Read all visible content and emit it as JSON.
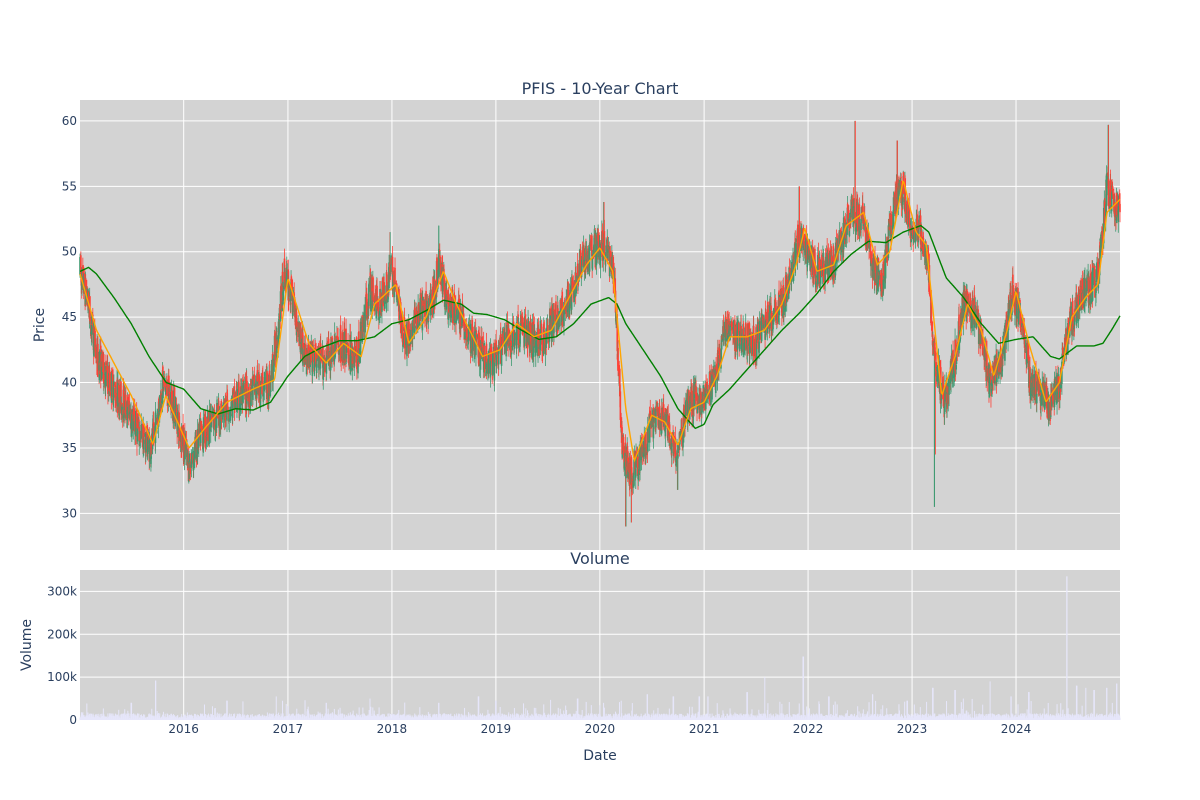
{
  "chart_data": {
    "type": "candlestick",
    "title": "PFIS - 10-Year Chart",
    "colors": {
      "plot_bg": "#d3d3d3",
      "grid": "#ffffff",
      "up": "#3d9970",
      "down": "#ff4136",
      "ma_short": "#ffa500",
      "ma_long": "#008000",
      "volume": "#e6e6fa"
    },
    "price_panel": {
      "ylabel": "Price",
      "ylim": [
        27.2,
        61.6
      ],
      "yticks": [
        30,
        35,
        40,
        45,
        50,
        55,
        60
      ],
      "xlim": [
        "2015-01-02",
        "2024-12-31"
      ],
      "xticks": [
        "2016",
        "2017",
        "2018",
        "2019",
        "2020",
        "2021",
        "2022",
        "2023",
        "2024"
      ],
      "anchors": [
        [
          "2015-01-02",
          48.5
        ],
        [
          "2015-02-01",
          46
        ],
        [
          "2015-03-01",
          42
        ],
        [
          "2015-04-15",
          40
        ],
        [
          "2015-06-15",
          38
        ],
        [
          "2015-08-01",
          36
        ],
        [
          "2015-09-10",
          35
        ],
        [
          "2015-10-20",
          40
        ],
        [
          "2015-12-01",
          38
        ],
        [
          "2016-01-20",
          33.5
        ],
        [
          "2016-03-01",
          36
        ],
        [
          "2016-05-01",
          37.5
        ],
        [
          "2016-07-01",
          38.5
        ],
        [
          "2016-09-01",
          39.5
        ],
        [
          "2016-11-01",
          40
        ],
        [
          "2016-11-25",
          44
        ],
        [
          "2016-12-20",
          48.5
        ],
        [
          "2017-01-20",
          46
        ],
        [
          "2017-03-01",
          42
        ],
        [
          "2017-05-01",
          41.5
        ],
        [
          "2017-07-01",
          43
        ],
        [
          "2017-09-01",
          42
        ],
        [
          "2017-10-15",
          47
        ],
        [
          "2017-11-15",
          46
        ],
        [
          "2018-01-01",
          48.5
        ],
        [
          "2018-02-20",
          43
        ],
        [
          "2018-04-01",
          45
        ],
        [
          "2018-05-20",
          46
        ],
        [
          "2018-06-15",
          49
        ],
        [
          "2018-07-15",
          46
        ],
        [
          "2018-09-01",
          45
        ],
        [
          "2018-10-15",
          43
        ],
        [
          "2018-12-20",
          41.5
        ],
        [
          "2019-02-01",
          43
        ],
        [
          "2019-04-01",
          44
        ],
        [
          "2019-06-01",
          43
        ],
        [
          "2019-07-15",
          44.5
        ],
        [
          "2019-09-15",
          46
        ],
        [
          "2019-10-20",
          49
        ],
        [
          "2019-12-15",
          50
        ],
        [
          "2020-01-15",
          50.5
        ],
        [
          "2020-02-20",
          48
        ],
        [
          "2020-03-20",
          35
        ],
        [
          "2020-04-20",
          33
        ],
        [
          "2020-05-20",
          34
        ],
        [
          "2020-07-01",
          37
        ],
        [
          "2020-08-15",
          37.5
        ],
        [
          "2020-09-25",
          34
        ],
        [
          "2020-10-30",
          38
        ],
        [
          "2020-12-01",
          39
        ],
        [
          "2021-01-01",
          38.5
        ],
        [
          "2021-02-15",
          41
        ],
        [
          "2021-03-15",
          44
        ],
        [
          "2021-05-01",
          43.5
        ],
        [
          "2021-07-01",
          43
        ],
        [
          "2021-08-15",
          45
        ],
        [
          "2021-10-01",
          46
        ],
        [
          "2021-11-01",
          48.5
        ],
        [
          "2021-12-01",
          51
        ],
        [
          "2022-01-01",
          50
        ],
        [
          "2022-02-01",
          48.5
        ],
        [
          "2022-04-01",
          49
        ],
        [
          "2022-05-01",
          51
        ],
        [
          "2022-06-01",
          53
        ],
        [
          "2022-07-15",
          52.5
        ],
        [
          "2022-08-15",
          49
        ],
        [
          "2022-09-20",
          48
        ],
        [
          "2022-11-01",
          54
        ],
        [
          "2022-12-01",
          55
        ],
        [
          "2023-01-01",
          51.5
        ],
        [
          "2023-02-01",
          51.5
        ],
        [
          "2023-02-25",
          49
        ],
        [
          "2023-03-20",
          42
        ],
        [
          "2023-04-25",
          38.5
        ],
        [
          "2023-06-01",
          42
        ],
        [
          "2023-07-01",
          46
        ],
        [
          "2023-08-15",
          45
        ],
        [
          "2023-10-01",
          40
        ],
        [
          "2023-11-15",
          42
        ],
        [
          "2023-12-20",
          47
        ],
        [
          "2024-01-20",
          45
        ],
        [
          "2024-02-20",
          40
        ],
        [
          "2024-04-01",
          39
        ],
        [
          "2024-05-01",
          38
        ],
        [
          "2024-06-01",
          40
        ],
        [
          "2024-07-01",
          44
        ],
        [
          "2024-08-01",
          46
        ],
        [
          "2024-09-01",
          47
        ],
        [
          "2024-10-15",
          48
        ],
        [
          "2024-11-15",
          55
        ],
        [
          "2024-12-31",
          53
        ]
      ],
      "ma_short_anchors": [
        [
          "2015-01-02",
          48.3
        ],
        [
          "2015-03-01",
          44
        ],
        [
          "2015-05-01",
          41.5
        ],
        [
          "2015-07-01",
          39
        ],
        [
          "2015-09-15",
          35.3
        ],
        [
          "2015-10-30",
          39
        ],
        [
          "2016-01-20",
          35
        ],
        [
          "2016-03-15",
          36.5
        ],
        [
          "2016-06-01",
          38.5
        ],
        [
          "2016-09-01",
          39.5
        ],
        [
          "2016-11-15",
          40.2
        ],
        [
          "2017-01-01",
          48
        ],
        [
          "2017-03-15",
          43
        ],
        [
          "2017-05-15",
          41.5
        ],
        [
          "2017-07-15",
          43
        ],
        [
          "2017-09-15",
          42
        ],
        [
          "2017-11-01",
          46
        ],
        [
          "2018-01-15",
          47.5
        ],
        [
          "2018-03-01",
          43
        ],
        [
          "2018-05-01",
          45
        ],
        [
          "2018-07-01",
          48.5
        ],
        [
          "2018-08-15",
          46
        ],
        [
          "2018-10-01",
          44
        ],
        [
          "2018-11-15",
          42
        ],
        [
          "2019-01-15",
          42.5
        ],
        [
          "2019-03-15",
          44.5
        ],
        [
          "2019-05-15",
          43.5
        ],
        [
          "2019-07-15",
          44
        ],
        [
          "2019-09-15",
          46.5
        ],
        [
          "2019-11-15",
          49
        ],
        [
          "2020-01-01",
          50.3
        ],
        [
          "2020-02-15",
          48.5
        ],
        [
          "2020-04-01",
          38
        ],
        [
          "2020-05-01",
          34
        ],
        [
          "2020-07-01",
          37.5
        ],
        [
          "2020-08-15",
          37
        ],
        [
          "2020-10-01",
          35.2
        ],
        [
          "2020-11-15",
          38
        ],
        [
          "2021-01-01",
          38.5
        ],
        [
          "2021-02-15",
          40.5
        ],
        [
          "2021-04-01",
          43.5
        ],
        [
          "2021-06-01",
          43.5
        ],
        [
          "2021-08-01",
          44
        ],
        [
          "2021-10-01",
          46
        ],
        [
          "2021-11-20",
          49
        ],
        [
          "2021-12-20",
          51.8
        ],
        [
          "2022-02-01",
          48.5
        ],
        [
          "2022-04-01",
          49
        ],
        [
          "2022-05-15",
          52
        ],
        [
          "2022-07-15",
          53
        ],
        [
          "2022-09-01",
          49
        ],
        [
          "2022-10-15",
          50
        ],
        [
          "2022-12-01",
          55.5
        ],
        [
          "2023-01-15",
          51.5
        ],
        [
          "2023-02-20",
          50.5
        ],
        [
          "2023-04-15",
          39
        ],
        [
          "2023-06-01",
          42
        ],
        [
          "2023-07-15",
          46
        ],
        [
          "2023-09-01",
          44
        ],
        [
          "2023-10-15",
          40.5
        ],
        [
          "2023-12-01",
          44
        ],
        [
          "2024-01-01",
          47
        ],
        [
          "2024-02-15",
          43
        ],
        [
          "2024-04-15",
          38.5
        ],
        [
          "2024-06-01",
          40
        ],
        [
          "2024-07-15",
          45
        ],
        [
          "2024-09-01",
          46.5
        ],
        [
          "2024-10-15",
          47.5
        ],
        [
          "2024-11-15",
          53
        ],
        [
          "2024-12-31",
          54
        ]
      ],
      "ma_long_anchors": [
        [
          "2015-01-02",
          48.5
        ],
        [
          "2015-02-01",
          48.8
        ],
        [
          "2015-03-01",
          48.3
        ],
        [
          "2015-05-01",
          46.5
        ],
        [
          "2015-07-01",
          44.5
        ],
        [
          "2015-09-01",
          42
        ],
        [
          "2015-11-01",
          40
        ],
        [
          "2016-01-01",
          39.5
        ],
        [
          "2016-03-01",
          38
        ],
        [
          "2016-05-01",
          37.6
        ],
        [
          "2016-07-01",
          38
        ],
        [
          "2016-09-01",
          37.9
        ],
        [
          "2016-11-01",
          38.5
        ],
        [
          "2017-01-01",
          40.5
        ],
        [
          "2017-03-01",
          42
        ],
        [
          "2017-05-01",
          42.7
        ],
        [
          "2017-07-01",
          43.2
        ],
        [
          "2017-09-01",
          43.2
        ],
        [
          "2017-11-01",
          43.5
        ],
        [
          "2018-01-01",
          44.5
        ],
        [
          "2018-03-01",
          44.8
        ],
        [
          "2018-05-01",
          45.5
        ],
        [
          "2018-07-01",
          46.3
        ],
        [
          "2018-09-01",
          46
        ],
        [
          "2018-10-15",
          45.3
        ],
        [
          "2018-12-01",
          45.2
        ],
        [
          "2019-02-01",
          44.8
        ],
        [
          "2019-04-01",
          44
        ],
        [
          "2019-06-01",
          43.3
        ],
        [
          "2019-08-01",
          43.5
        ],
        [
          "2019-10-01",
          44.5
        ],
        [
          "2019-12-01",
          46
        ],
        [
          "2020-02-01",
          46.5
        ],
        [
          "2020-03-01",
          46
        ],
        [
          "2020-04-01",
          44.5
        ],
        [
          "2020-06-01",
          42.5
        ],
        [
          "2020-08-01",
          40.5
        ],
        [
          "2020-10-01",
          38
        ],
        [
          "2020-12-01",
          36.5
        ],
        [
          "2021-01-01",
          36.8
        ],
        [
          "2021-02-01",
          38.3
        ],
        [
          "2021-04-01",
          39.5
        ],
        [
          "2021-06-01",
          41
        ],
        [
          "2021-08-01",
          42.5
        ],
        [
          "2021-10-01",
          44
        ],
        [
          "2021-12-01",
          45.3
        ],
        [
          "2022-02-01",
          46.8
        ],
        [
          "2022-04-01",
          48.5
        ],
        [
          "2022-06-01",
          49.8
        ],
        [
          "2022-08-01",
          50.8
        ],
        [
          "2022-10-01",
          50.7
        ],
        [
          "2022-12-01",
          51.5
        ],
        [
          "2023-02-01",
          52
        ],
        [
          "2023-03-01",
          51.5
        ],
        [
          "2023-05-01",
          48
        ],
        [
          "2023-07-01",
          46.5
        ],
        [
          "2023-09-01",
          44.5
        ],
        [
          "2023-11-01",
          43
        ],
        [
          "2024-01-01",
          43.3
        ],
        [
          "2024-03-01",
          43.5
        ],
        [
          "2024-05-01",
          42
        ],
        [
          "2024-06-01",
          41.8
        ],
        [
          "2024-08-01",
          42.8
        ],
        [
          "2024-10-01",
          42.8
        ],
        [
          "2024-11-01",
          43
        ],
        [
          "2024-12-01",
          44
        ],
        [
          "2024-12-31",
          45.1
        ]
      ],
      "extremes": [
        [
          "2016-01-20",
          32.8
        ],
        [
          "2020-04-01",
          29
        ],
        [
          "2020-04-20",
          29.3
        ],
        [
          "2020-09-30",
          31.8
        ],
        [
          "2022-06-15",
          60
        ],
        [
          "2022-11-10",
          58.5
        ],
        [
          "2023-03-20",
          30.5
        ],
        [
          "2023-03-25",
          34.5
        ],
        [
          "2024-11-20",
          59.7
        ],
        [
          "2020-01-15",
          53.8
        ],
        [
          "2018-06-15",
          52
        ],
        [
          "2017-12-25",
          51.5
        ],
        [
          "2021-12-01",
          55
        ]
      ]
    },
    "volume_panel": {
      "title": "Volume",
      "ylabel": "Volume",
      "ylim": [
        0,
        350000
      ],
      "yticks": [
        0,
        100000,
        200000,
        300000
      ],
      "ytick_labels": [
        "0",
        "100k",
        "200k",
        "300k"
      ],
      "xlabel": "Date",
      "baseline": 12000,
      "spikes": [
        [
          "2015-09-25",
          92000
        ],
        [
          "2015-07-01",
          40000
        ],
        [
          "2016-06-01",
          45000
        ],
        [
          "2016-11-20",
          55000
        ],
        [
          "2017-05-15",
          40000
        ],
        [
          "2017-10-15",
          50000
        ],
        [
          "2018-06-15",
          40000
        ],
        [
          "2018-11-01",
          55000
        ],
        [
          "2019-01-01",
          45000
        ],
        [
          "2019-10-15",
          50000
        ],
        [
          "2020-03-15",
          45000
        ],
        [
          "2020-06-15",
          60000
        ],
        [
          "2020-09-15",
          55000
        ],
        [
          "2020-12-15",
          55000
        ],
        [
          "2021-01-15",
          55000
        ],
        [
          "2021-06-01",
          65000
        ],
        [
          "2021-08-01",
          100000
        ],
        [
          "2021-12-15",
          148000
        ],
        [
          "2022-03-15",
          55000
        ],
        [
          "2022-08-15",
          60000
        ],
        [
          "2022-12-15",
          45000
        ],
        [
          "2023-03-15",
          75000
        ],
        [
          "2023-06-01",
          70000
        ],
        [
          "2023-07-01",
          50000
        ],
        [
          "2023-10-01",
          90000
        ],
        [
          "2023-12-15",
          55000
        ],
        [
          "2024-02-15",
          65000
        ],
        [
          "2024-06-28",
          335000
        ],
        [
          "2024-08-01",
          80000
        ],
        [
          "2024-09-01",
          75000
        ],
        [
          "2024-10-01",
          70000
        ],
        [
          "2024-11-15",
          75000
        ],
        [
          "2024-12-20",
          85000
        ]
      ]
    }
  }
}
